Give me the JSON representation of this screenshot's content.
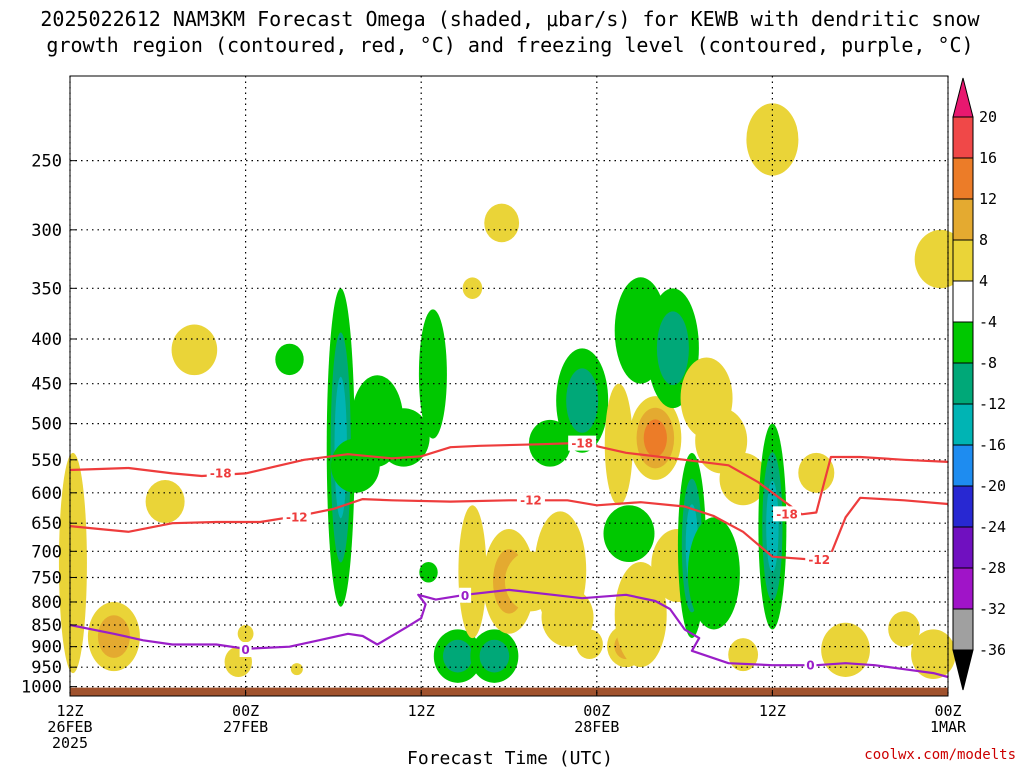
{
  "title_line1": "2025022612 NAM3KM Forecast Omega (shaded, μbar/s) for KEWB with dendritic snow",
  "title_line2": "growth region (contoured, red, °C) and freezing level (contoured, purple, °C)",
  "credit": "coolwx.com/modelts",
  "chart_data": {
    "type": "heatmap",
    "title": "2025022612 NAM3KM Forecast Omega (shaded, μbar/s) for KEWB with dendritic snow growth region (contoured, red, °C) and freezing level (contoured, purple, °C)",
    "xlabel": "Forecast Time (UTC)",
    "ylabel": "",
    "y_scale": "log-pressure",
    "ylim": [
      1025,
      200
    ],
    "xlim": [
      0,
      60
    ],
    "y_ticks": [
      250,
      300,
      350,
      400,
      450,
      500,
      550,
      600,
      650,
      700,
      750,
      800,
      850,
      900,
      950,
      1000
    ],
    "x_ticks": [
      {
        "hour": 0,
        "line1": "12Z",
        "line2": "26FEB",
        "line3": "2025"
      },
      {
        "hour": 12,
        "line1": "00Z",
        "line2": "27FEB",
        "line3": ""
      },
      {
        "hour": 24,
        "line1": "12Z",
        "line2": "",
        "line3": ""
      },
      {
        "hour": 36,
        "line1": "00Z",
        "line2": "28FEB",
        "line3": ""
      },
      {
        "hour": 48,
        "line1": "12Z",
        "line2": "",
        "line3": ""
      },
      {
        "hour": 60,
        "line1": "00Z",
        "line2": "1MAR",
        "line3": ""
      }
    ],
    "grid": true,
    "colorbar": {
      "labels": [
        "20",
        "16",
        "12",
        "8",
        "4",
        "-4",
        "-8",
        "-12",
        "-16",
        "-20",
        "-24",
        "-28",
        "-32",
        "-36"
      ],
      "colors": [
        "#e8186f",
        "#f04848",
        "#ec7c28",
        "#e4aa30",
        "#ead438",
        "#ffffff",
        "#00c800",
        "#00a878",
        "#00b4b4",
        "#1e8cf0",
        "#2828d2",
        "#7010c0",
        "#a014c8",
        "#a0a0a0",
        "#000000"
      ]
    },
    "ground_color": "#a0522d",
    "omega_regions": [
      {
        "hour": 0.2,
        "p_top": 540,
        "p_bot": 965,
        "peak": 6
      },
      {
        "hour": 3.0,
        "p_top": 800,
        "p_bot": 960,
        "peak": 10
      },
      {
        "hour": 6.5,
        "p_top": 580,
        "p_bot": 650,
        "peak": 5
      },
      {
        "hour": 8.5,
        "p_top": 385,
        "p_bot": 440,
        "peak": 5
      },
      {
        "hour": 11.5,
        "p_top": 900,
        "p_bot": 975,
        "peak": 5
      },
      {
        "hour": 12.0,
        "p_top": 850,
        "p_bot": 890,
        "peak": 5
      },
      {
        "hour": 15.5,
        "p_top": 940,
        "p_bot": 970,
        "peak": 5
      },
      {
        "hour": 18.5,
        "p_top": 350,
        "p_bot": 810,
        "peak": -14
      },
      {
        "hour": 15.0,
        "p_top": 405,
        "p_bot": 440,
        "peak": -6
      },
      {
        "hour": 19.5,
        "p_top": 520,
        "p_bot": 600,
        "peak": -6
      },
      {
        "hour": 21.0,
        "p_top": 440,
        "p_bot": 560,
        "peak": -6
      },
      {
        "hour": 22.8,
        "p_top": 480,
        "p_bot": 560,
        "peak": -6
      },
      {
        "hour": 24.8,
        "p_top": 370,
        "p_bot": 520,
        "peak": -6
      },
      {
        "hour": 24.5,
        "p_top": 720,
        "p_bot": 760,
        "peak": -6
      },
      {
        "hour": 26.5,
        "p_top": 860,
        "p_bot": 990,
        "peak": -8
      },
      {
        "hour": 29.0,
        "p_top": 860,
        "p_bot": 990,
        "peak": -10
      },
      {
        "hour": 27.5,
        "p_top": 620,
        "p_bot": 880,
        "peak": 6
      },
      {
        "hour": 30.0,
        "p_top": 660,
        "p_bot": 870,
        "peak": 8
      },
      {
        "hour": 31.5,
        "p_top": 700,
        "p_bot": 820,
        "peak": 6
      },
      {
        "hour": 29.5,
        "p_top": 280,
        "p_bot": 310,
        "peak": 5
      },
      {
        "hour": 27.5,
        "p_top": 340,
        "p_bot": 360,
        "peak": 6
      },
      {
        "hour": 32.8,
        "p_top": 495,
        "p_bot": 560,
        "peak": -6
      },
      {
        "hour": 33.5,
        "p_top": 630,
        "p_bot": 860,
        "peak": 5
      },
      {
        "hour": 34.0,
        "p_top": 770,
        "p_bot": 900,
        "peak": 5
      },
      {
        "hour": 35.0,
        "p_top": 410,
        "p_bot": 540,
        "peak": -10
      },
      {
        "hour": 35.5,
        "p_top": 860,
        "p_bot": 930,
        "peak": 5
      },
      {
        "hour": 37.5,
        "p_top": 450,
        "p_bot": 620,
        "peak": 5
      },
      {
        "hour": 38.2,
        "p_top": 620,
        "p_bot": 720,
        "peak": -6
      },
      {
        "hour": 38.0,
        "p_top": 850,
        "p_bot": 950,
        "peak": 10
      },
      {
        "hour": 39.0,
        "p_top": 720,
        "p_bot": 950,
        "peak": 5
      },
      {
        "hour": 40.0,
        "p_top": 465,
        "p_bot": 580,
        "peak": 14
      },
      {
        "hour": 39.0,
        "p_top": 340,
        "p_bot": 450,
        "peak": -6
      },
      {
        "hour": 41.2,
        "p_top": 350,
        "p_bot": 480,
        "peak": -10
      },
      {
        "hour": 41.5,
        "p_top": 660,
        "p_bot": 800,
        "peak": 5
      },
      {
        "hour": 42.5,
        "p_top": 540,
        "p_bot": 880,
        "peak": -14
      },
      {
        "hour": 44.0,
        "p_top": 640,
        "p_bot": 860,
        "peak": -6
      },
      {
        "hour": 44.5,
        "p_top": 480,
        "p_bot": 570,
        "peak": 5
      },
      {
        "hour": 43.5,
        "p_top": 420,
        "p_bot": 520,
        "peak": 5
      },
      {
        "hour": 46.0,
        "p_top": 540,
        "p_bot": 620,
        "peak": 5
      },
      {
        "hour": 46.0,
        "p_top": 880,
        "p_bot": 960,
        "peak": 5
      },
      {
        "hour": 48.0,
        "p_top": 500,
        "p_bot": 860,
        "peak": -12
      },
      {
        "hour": 48.0,
        "p_top": 215,
        "p_bot": 260,
        "peak": 5
      },
      {
        "hour": 51.0,
        "p_top": 540,
        "p_bot": 600,
        "peak": 5
      },
      {
        "hour": 53.0,
        "p_top": 845,
        "p_bot": 975,
        "peak": 6
      },
      {
        "hour": 57.0,
        "p_top": 820,
        "p_bot": 900,
        "peak": 5
      },
      {
        "hour": 59.0,
        "p_top": 860,
        "p_bot": 980,
        "peak": 5
      },
      {
        "hour": 59.5,
        "p_top": 300,
        "p_bot": 350,
        "peak": 5
      }
    ],
    "contours": [
      {
        "name": "-18",
        "color": "#ee3c3c",
        "points": [
          [
            0,
            565
          ],
          [
            4,
            562
          ],
          [
            7,
            570
          ],
          [
            9,
            574
          ],
          [
            12,
            570
          ],
          [
            14,
            560
          ],
          [
            16,
            550
          ],
          [
            19,
            542
          ],
          [
            22,
            548
          ],
          [
            24,
            545
          ],
          [
            26,
            532
          ],
          [
            28,
            530
          ],
          [
            32,
            528
          ],
          [
            35,
            526
          ],
          [
            38,
            540
          ],
          [
            42,
            550
          ],
          [
            45,
            558
          ],
          [
            47,
            583
          ],
          [
            50,
            635
          ],
          [
            51,
            632
          ],
          [
            52,
            546
          ],
          [
            54,
            546
          ],
          [
            57,
            550
          ],
          [
            60,
            553
          ]
        ],
        "labels": [
          {
            "hour": 10.3,
            "p": 570,
            "text": "-18"
          },
          {
            "hour": 35.0,
            "p": 527,
            "text": "-18"
          },
          {
            "hour": 49.0,
            "p": 635,
            "text": "-18"
          }
        ]
      },
      {
        "name": "-12",
        "color": "#ee3c3c",
        "points": [
          [
            0,
            655
          ],
          [
            2,
            660
          ],
          [
            4,
            665
          ],
          [
            7,
            650
          ],
          [
            10,
            648
          ],
          [
            13,
            648
          ],
          [
            16,
            636
          ],
          [
            18,
            626
          ],
          [
            20,
            610
          ],
          [
            22,
            612
          ],
          [
            26,
            614
          ],
          [
            30,
            612
          ],
          [
            34,
            612
          ],
          [
            36,
            620
          ],
          [
            39,
            615
          ],
          [
            42,
            622
          ],
          [
            44,
            638
          ],
          [
            46,
            665
          ],
          [
            48,
            710
          ],
          [
            51,
            716
          ],
          [
            52,
            705
          ],
          [
            53,
            640
          ],
          [
            54,
            608
          ],
          [
            57,
            612
          ],
          [
            60,
            618
          ]
        ],
        "labels": [
          {
            "hour": 15.5,
            "p": 640,
            "text": "-12"
          },
          {
            "hour": 31.5,
            "p": 612,
            "text": "-12"
          },
          {
            "hour": 51.2,
            "p": 716,
            "text": "-12"
          }
        ]
      },
      {
        "name": "0",
        "color": "#9a1ec8",
        "points": [
          [
            0,
            850
          ],
          [
            3,
            870
          ],
          [
            5,
            885
          ],
          [
            7,
            895
          ],
          [
            10,
            895
          ],
          [
            12,
            905
          ],
          [
            15,
            900
          ],
          [
            17,
            885
          ],
          [
            19,
            870
          ],
          [
            20,
            875
          ],
          [
            21,
            895
          ],
          [
            23,
            855
          ],
          [
            24,
            835
          ],
          [
            24.3,
            805
          ],
          [
            23.8,
            785
          ],
          [
            25,
            795
          ],
          [
            27,
            785
          ],
          [
            30,
            775
          ],
          [
            33,
            785
          ],
          [
            35,
            792
          ],
          [
            38,
            785
          ],
          [
            40,
            798
          ],
          [
            41,
            815
          ],
          [
            42,
            860
          ],
          [
            43,
            880
          ],
          [
            42.5,
            910
          ],
          [
            45,
            940
          ],
          [
            48,
            945
          ],
          [
            51,
            945
          ],
          [
            53,
            940
          ],
          [
            55,
            945
          ],
          [
            57,
            955
          ],
          [
            59,
            965
          ],
          [
            60,
            975
          ]
        ],
        "labels": [
          {
            "hour": 12.0,
            "p": 908,
            "text": "0"
          },
          {
            "hour": 27.0,
            "p": 787,
            "text": "0"
          },
          {
            "hour": 50.6,
            "p": 946,
            "text": "0"
          }
        ]
      }
    ]
  }
}
